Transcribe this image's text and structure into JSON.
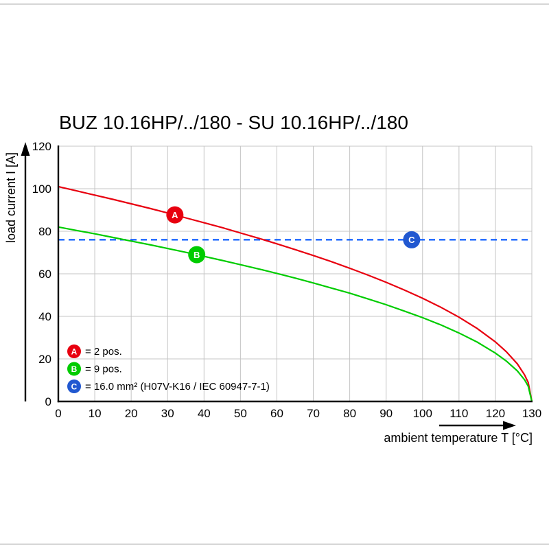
{
  "chart_data": {
    "type": "line",
    "title": "BUZ 10.16HP/../180 - SU 10.16HP/../180",
    "xlabel": "ambient temperature T [°C]",
    "ylabel": "load current I [A]",
    "xlim": [
      0,
      130
    ],
    "ylim": [
      0,
      120
    ],
    "x_ticks": [
      0,
      10,
      20,
      30,
      40,
      50,
      60,
      70,
      80,
      90,
      100,
      110,
      120,
      130
    ],
    "y_ticks": [
      0,
      20,
      40,
      60,
      80,
      100,
      120
    ],
    "grid": true,
    "legend_position": "bottom-left",
    "series": [
      {
        "name": "A",
        "label": "2 pos.",
        "color": "#e8000f",
        "type": "curve",
        "points": [
          [
            0,
            101
          ],
          [
            5,
            99.0
          ],
          [
            10,
            97.0
          ],
          [
            15,
            95.0
          ],
          [
            20,
            92.9
          ],
          [
            25,
            90.8
          ],
          [
            30,
            88.6
          ],
          [
            35,
            86.3
          ],
          [
            40,
            84.0
          ],
          [
            45,
            81.7
          ],
          [
            50,
            79.2
          ],
          [
            55,
            76.7
          ],
          [
            60,
            74.1
          ],
          [
            65,
            71.4
          ],
          [
            70,
            68.6
          ],
          [
            75,
            65.7
          ],
          [
            80,
            62.6
          ],
          [
            85,
            59.4
          ],
          [
            90,
            56.0
          ],
          [
            95,
            52.4
          ],
          [
            100,
            48.5
          ],
          [
            105,
            44.3
          ],
          [
            110,
            39.6
          ],
          [
            115,
            34.3
          ],
          [
            120,
            28.0
          ],
          [
            123,
            23.4
          ],
          [
            126,
            17.7
          ],
          [
            128,
            12.5
          ],
          [
            129,
            8.9
          ],
          [
            130,
            0
          ]
        ]
      },
      {
        "name": "B",
        "label": "9 pos.",
        "color": "#00cc00",
        "type": "curve",
        "points": [
          [
            0,
            82
          ],
          [
            5,
            80.4
          ],
          [
            10,
            78.8
          ],
          [
            15,
            77.1
          ],
          [
            20,
            75.4
          ],
          [
            25,
            73.7
          ],
          [
            30,
            71.9
          ],
          [
            35,
            70.1
          ],
          [
            40,
            68.2
          ],
          [
            45,
            66.3
          ],
          [
            50,
            64.3
          ],
          [
            55,
            62.3
          ],
          [
            60,
            60.2
          ],
          [
            65,
            58.0
          ],
          [
            70,
            55.7
          ],
          [
            75,
            53.3
          ],
          [
            80,
            50.9
          ],
          [
            85,
            48.2
          ],
          [
            90,
            45.5
          ],
          [
            95,
            42.5
          ],
          [
            100,
            39.4
          ],
          [
            105,
            36.0
          ],
          [
            110,
            32.2
          ],
          [
            115,
            27.9
          ],
          [
            120,
            22.7
          ],
          [
            123,
            19.0
          ],
          [
            126,
            14.4
          ],
          [
            128,
            10.2
          ],
          [
            129,
            7.2
          ],
          [
            130,
            0
          ]
        ]
      },
      {
        "name": "C",
        "label": "16.0 mm² (H07V-K16 / IEC 60947-7-1)",
        "color": "#0b5cff",
        "type": "hline",
        "value": 76,
        "dashed": true
      }
    ],
    "markers": [
      {
        "label": "A",
        "x": 32,
        "y": 87.7,
        "color": "#e8000f"
      },
      {
        "label": "B",
        "x": 38,
        "y": 69.0,
        "color": "#00cc00"
      },
      {
        "label": "C",
        "x": 97,
        "y": 76.0,
        "color": "#2158d0"
      }
    ],
    "legend": {
      "items": [
        {
          "key": "A",
          "color": "#e8000f",
          "text": "= 2 pos."
        },
        {
          "key": "B",
          "color": "#00cc00",
          "text": "= 9 pos."
        },
        {
          "key": "C",
          "color": "#2158d0",
          "text": "= 16.0 mm² (H07V-K16 / IEC 60947-7-1)"
        }
      ]
    }
  }
}
